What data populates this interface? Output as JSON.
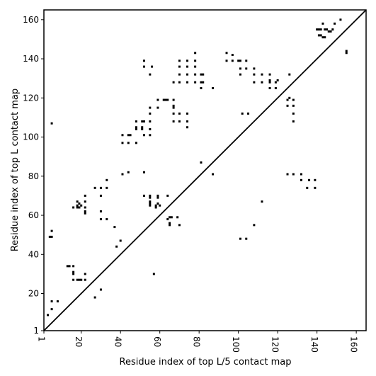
{
  "chart_data": {
    "type": "scatter",
    "title": "",
    "xlabel": "Residue index of top L/5 contact map",
    "ylabel": "Residue index of top L contact map",
    "xlim": [
      1,
      165
    ],
    "ylim": [
      1,
      165
    ],
    "x_ticks": [
      1,
      20,
      40,
      60,
      80,
      100,
      120,
      140,
      160
    ],
    "y_ticks": [
      1,
      20,
      40,
      60,
      80,
      100,
      120,
      140,
      160
    ],
    "grid": false,
    "diagonal": true,
    "marker_color": "#000000",
    "series": [
      {
        "name": "",
        "points": [
          [
            3,
            9
          ],
          [
            4,
            49
          ],
          [
            5,
            49
          ],
          [
            5,
            12
          ],
          [
            5,
            16
          ],
          [
            5,
            52
          ],
          [
            5,
            107
          ],
          [
            8,
            16
          ],
          [
            13,
            34
          ],
          [
            14,
            34
          ],
          [
            16,
            34
          ],
          [
            16,
            31
          ],
          [
            16,
            30
          ],
          [
            16,
            27
          ],
          [
            16,
            64
          ],
          [
            18,
            27
          ],
          [
            18,
            64
          ],
          [
            18,
            65
          ],
          [
            18,
            67
          ],
          [
            19,
            27
          ],
          [
            19,
            64
          ],
          [
            19,
            66
          ],
          [
            20,
            27
          ],
          [
            20,
            65
          ],
          [
            22,
            27
          ],
          [
            22,
            30
          ],
          [
            22,
            61
          ],
          [
            22,
            62
          ],
          [
            22,
            64
          ],
          [
            22,
            67
          ],
          [
            22,
            70
          ],
          [
            27,
            18
          ],
          [
            27,
            74
          ],
          [
            30,
            22
          ],
          [
            30,
            58
          ],
          [
            30,
            62
          ],
          [
            30,
            70
          ],
          [
            30,
            74
          ],
          [
            33,
            58
          ],
          [
            33,
            74
          ],
          [
            33,
            78
          ],
          [
            37,
            54
          ],
          [
            38,
            44
          ],
          [
            40,
            47
          ],
          [
            41,
            81
          ],
          [
            41,
            97
          ],
          [
            41,
            101
          ],
          [
            44,
            82
          ],
          [
            44,
            97
          ],
          [
            44,
            101
          ],
          [
            45,
            101
          ],
          [
            48,
            97
          ],
          [
            48,
            104
          ],
          [
            48,
            105
          ],
          [
            48,
            108
          ],
          [
            51,
            104
          ],
          [
            51,
            105
          ],
          [
            51,
            108
          ],
          [
            52,
            70
          ],
          [
            52,
            82
          ],
          [
            52,
            101
          ],
          [
            52,
            108
          ],
          [
            52,
            136
          ],
          [
            52,
            139
          ],
          [
            55,
            65
          ],
          [
            55,
            66
          ],
          [
            55,
            67
          ],
          [
            55,
            69
          ],
          [
            55,
            70
          ],
          [
            55,
            101
          ],
          [
            55,
            104
          ],
          [
            55,
            108
          ],
          [
            55,
            112
          ],
          [
            55,
            115
          ],
          [
            55,
            132
          ],
          [
            56,
            136
          ],
          [
            57,
            30
          ],
          [
            58,
            64
          ],
          [
            58,
            65
          ],
          [
            59,
            69
          ],
          [
            59,
            70
          ],
          [
            59,
            115
          ],
          [
            59,
            119
          ],
          [
            59,
            66
          ],
          [
            60,
            65
          ],
          [
            62,
            119
          ],
          [
            63,
            119
          ],
          [
            64,
            58
          ],
          [
            64,
            70
          ],
          [
            64,
            119
          ],
          [
            65,
            55
          ],
          [
            65,
            56
          ],
          [
            65,
            59
          ],
          [
            66,
            59
          ],
          [
            67,
            108
          ],
          [
            67,
            112
          ],
          [
            67,
            115
          ],
          [
            67,
            116
          ],
          [
            67,
            119
          ],
          [
            67,
            128
          ],
          [
            69,
            59
          ],
          [
            70,
            55
          ],
          [
            70,
            108
          ],
          [
            70,
            112
          ],
          [
            70,
            128
          ],
          [
            70,
            132
          ],
          [
            70,
            136
          ],
          [
            70,
            139
          ],
          [
            74,
            105
          ],
          [
            74,
            108
          ],
          [
            74,
            112
          ],
          [
            74,
            128
          ],
          [
            74,
            132
          ],
          [
            74,
            136
          ],
          [
            74,
            139
          ],
          [
            78,
            128
          ],
          [
            78,
            132
          ],
          [
            78,
            136
          ],
          [
            78,
            139
          ],
          [
            78,
            143
          ],
          [
            81,
            87
          ],
          [
            81,
            125
          ],
          [
            81,
            128
          ],
          [
            81,
            132
          ],
          [
            82,
            132
          ],
          [
            82,
            128
          ],
          [
            87,
            81
          ],
          [
            87,
            125
          ],
          [
            94,
            139
          ],
          [
            94,
            143
          ],
          [
            97,
            139
          ],
          [
            97,
            142
          ],
          [
            100,
            139
          ],
          [
            101,
            48
          ],
          [
            101,
            132
          ],
          [
            101,
            135
          ],
          [
            101,
            139
          ],
          [
            102,
            112
          ],
          [
            104,
            48
          ],
          [
            104,
            135
          ],
          [
            104,
            139
          ],
          [
            105,
            112
          ],
          [
            108,
            55
          ],
          [
            108,
            128
          ],
          [
            108,
            132
          ],
          [
            108,
            135
          ],
          [
            112,
            67
          ],
          [
            112,
            128
          ],
          [
            112,
            132
          ],
          [
            116,
            125
          ],
          [
            116,
            128
          ],
          [
            116,
            129
          ],
          [
            116,
            132
          ],
          [
            119,
            125
          ],
          [
            119,
            128
          ],
          [
            120,
            129
          ],
          [
            125,
            81
          ],
          [
            125,
            116
          ],
          [
            125,
            119
          ],
          [
            126,
            120
          ],
          [
            126,
            132
          ],
          [
            128,
            81
          ],
          [
            128,
            108
          ],
          [
            128,
            112
          ],
          [
            128,
            116
          ],
          [
            128,
            119
          ],
          [
            132,
            78
          ],
          [
            132,
            81
          ],
          [
            135,
            74
          ],
          [
            136,
            78
          ],
          [
            139,
            74
          ],
          [
            139,
            78
          ],
          [
            140,
            155
          ],
          [
            141,
            152
          ],
          [
            141,
            155
          ],
          [
            142,
            152
          ],
          [
            142,
            155
          ],
          [
            143,
            151
          ],
          [
            143,
            158
          ],
          [
            144,
            151
          ],
          [
            144,
            155
          ],
          [
            145,
            155
          ],
          [
            146,
            154
          ],
          [
            147,
            154
          ],
          [
            148,
            155
          ],
          [
            149,
            158
          ],
          [
            152,
            160
          ],
          [
            155,
            143
          ],
          [
            155,
            144
          ]
        ]
      }
    ]
  }
}
